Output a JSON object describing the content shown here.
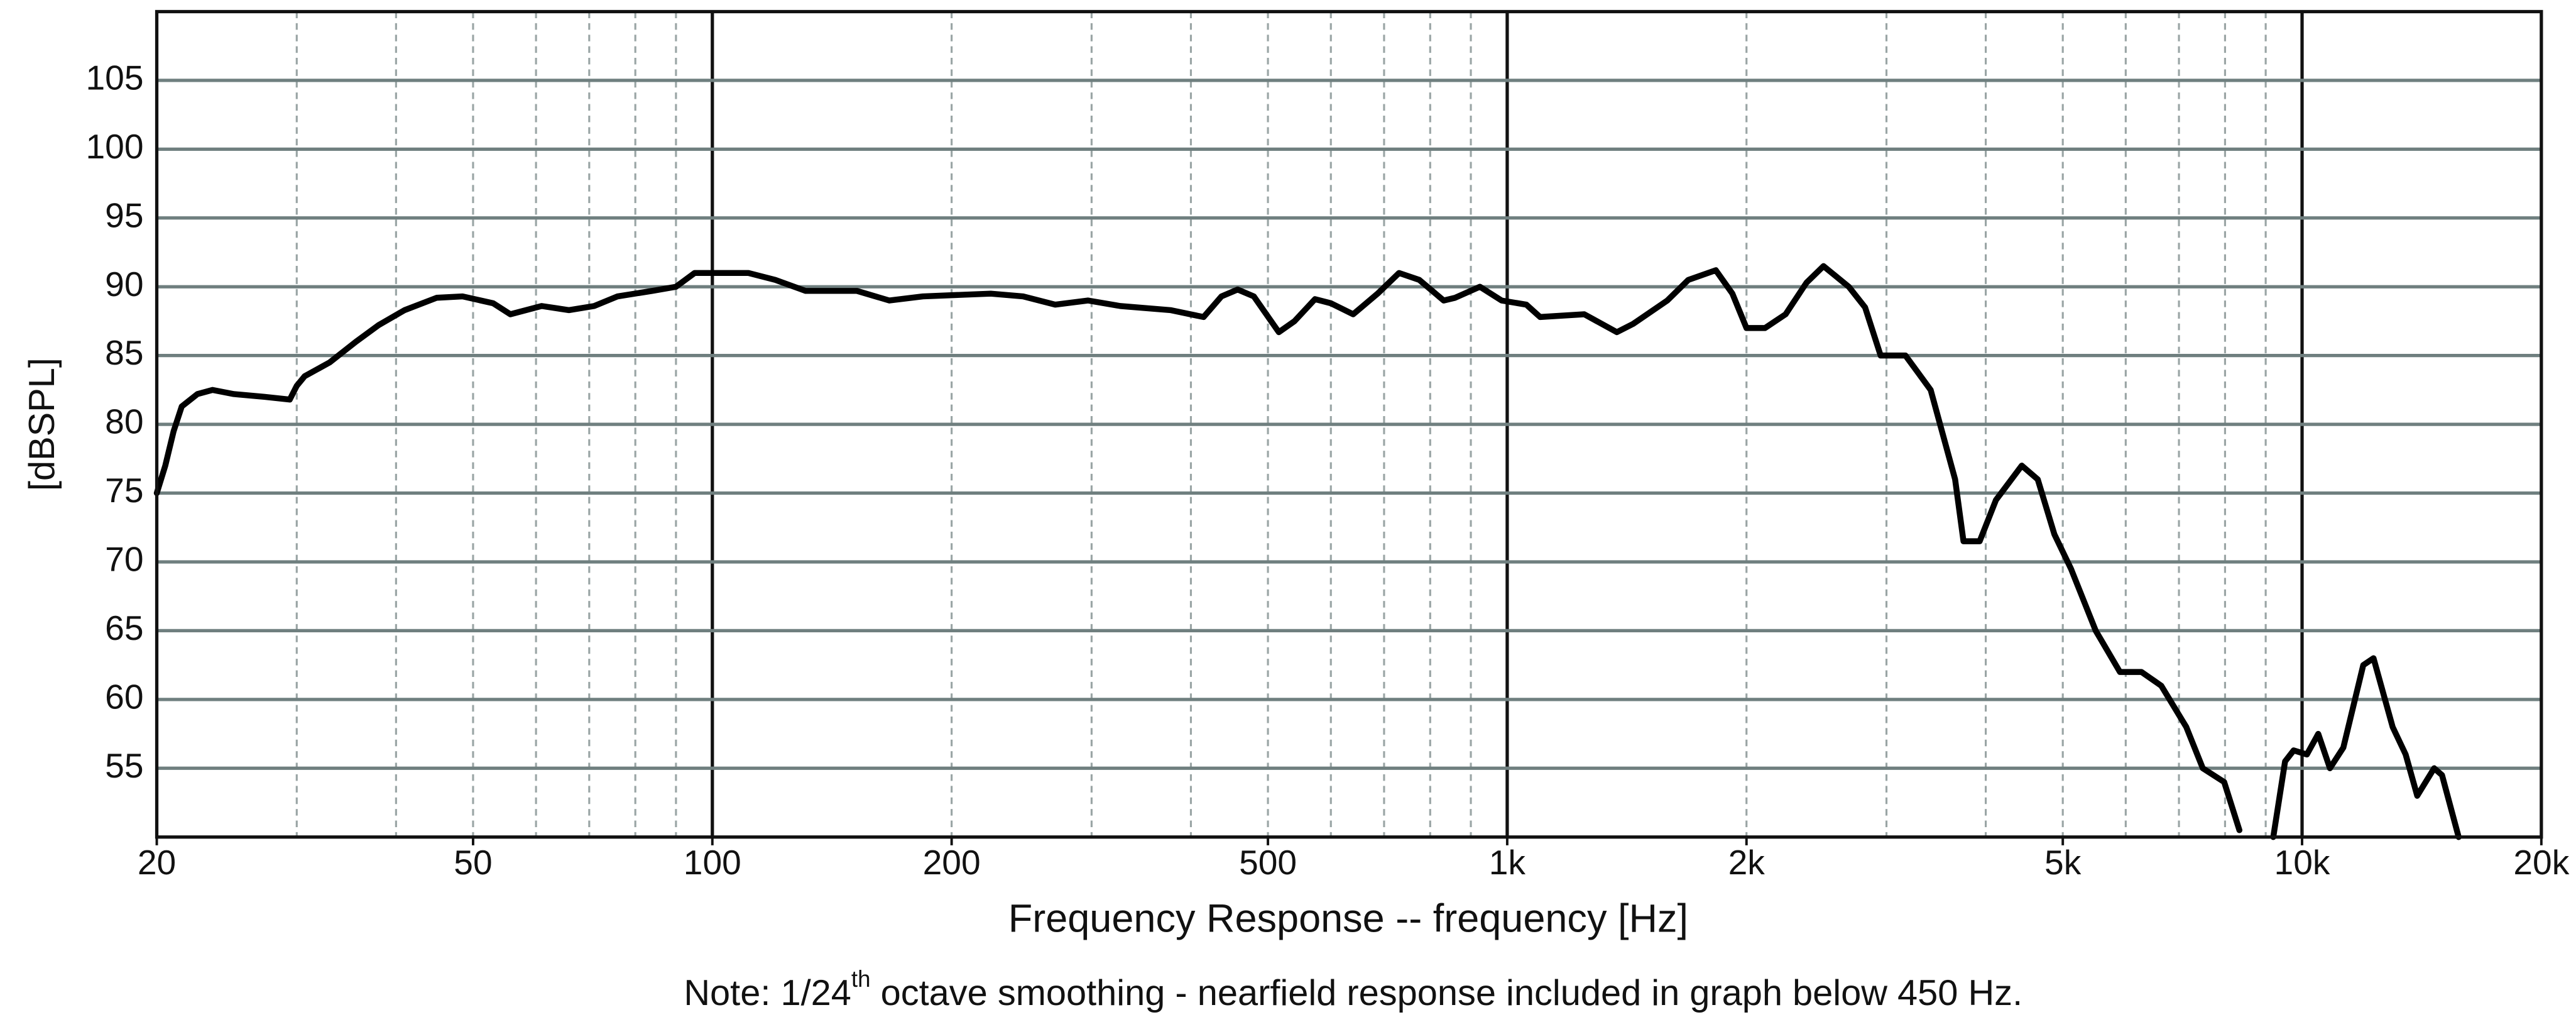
{
  "chart_data": {
    "type": "line",
    "x_label": "Frequency Response -- frequency [Hz]",
    "y_label": "[dBSPL]",
    "note": {
      "before": "Note: 1/24",
      "superscript": "th",
      "after": " octave smoothing - nearfield response included in graph below 450 Hz."
    },
    "log_x": true,
    "grid": true,
    "color": "#000000",
    "xlim": [
      20,
      20000
    ],
    "ylim": [
      50,
      110
    ],
    "xticks": [
      20,
      50,
      100,
      200,
      500,
      {
        "value": 1000,
        "label": "1k"
      },
      {
        "value": 2000,
        "label": "2k"
      },
      {
        "value": 5000,
        "label": "5k"
      },
      {
        "value": 10000,
        "label": "10k"
      },
      {
        "value": 20000,
        "label": "20k"
      }
    ],
    "yticks": [
      55,
      60,
      65,
      70,
      75,
      80,
      85,
      90,
      95,
      100,
      105
    ],
    "x": [
      20,
      20.5,
      21,
      21.5,
      22.5,
      23.5,
      25,
      27.3,
      29.4,
      30,
      30.7,
      33,
      35.6,
      38,
      41,
      45,
      48.5,
      53,
      55.7,
      61,
      66,
      71,
      76,
      84,
      90,
      95,
      101,
      111,
      120,
      131,
      152,
      167,
      184,
      224,
      246,
      270,
      297,
      326,
      377,
      415,
      437,
      458,
      480,
      516,
      540,
      573,
      600,
      640,
      687,
      731,
      775,
      832,
      860,
      924,
      984,
      1057,
      1100,
      1250,
      1374,
      1440,
      1590,
      1690,
      1830,
      1920,
      2000,
      2110,
      2240,
      2380,
      2500,
      2690,
      2820,
      2950,
      3170,
      3410,
      3660,
      3750,
      3930,
      4120,
      4440,
      4650,
      4880,
      5120,
      5500,
      5900,
      6280,
      6650,
      7150,
      7500,
      7980,
      8340,
      8800,
      9200,
      9520,
      9760,
      10140,
      10480,
      10840,
      11270,
      11940,
      12300,
      13000,
      13500,
      13960,
      14660,
      15000,
      15740
    ],
    "values": [
      75,
      77,
      79.5,
      81.3,
      82.2,
      82.5,
      82.2,
      82,
      81.8,
      82.8,
      83.5,
      84.5,
      86,
      87.2,
      88.3,
      89.2,
      89.3,
      88.8,
      88,
      88.6,
      88.3,
      88.6,
      89.3,
      89.7,
      90,
      91,
      91,
      91,
      90.5,
      89.7,
      89.7,
      89,
      89.3,
      89.5,
      89.3,
      88.7,
      89,
      88.6,
      88.3,
      87.8,
      89.3,
      89.8,
      89.3,
      86.7,
      87.5,
      89.1,
      88.8,
      88,
      89.5,
      91,
      90.5,
      89,
      89.2,
      90,
      89,
      88.7,
      87.8,
      88,
      86.7,
      87.3,
      89,
      90.5,
      91.2,
      89.5,
      87,
      87,
      88,
      90.3,
      91.5,
      90,
      88.5,
      85,
      85,
      82.5,
      76,
      71.5,
      71.5,
      74.5,
      77,
      76,
      72,
      69.5,
      65,
      62,
      62,
      61,
      58,
      55,
      54,
      50.5,
      null,
      50,
      55.5,
      56.3,
      56,
      57.5,
      55,
      56.5,
      62.5,
      63,
      58,
      56,
      53,
      55,
      54.5,
      50
    ]
  }
}
